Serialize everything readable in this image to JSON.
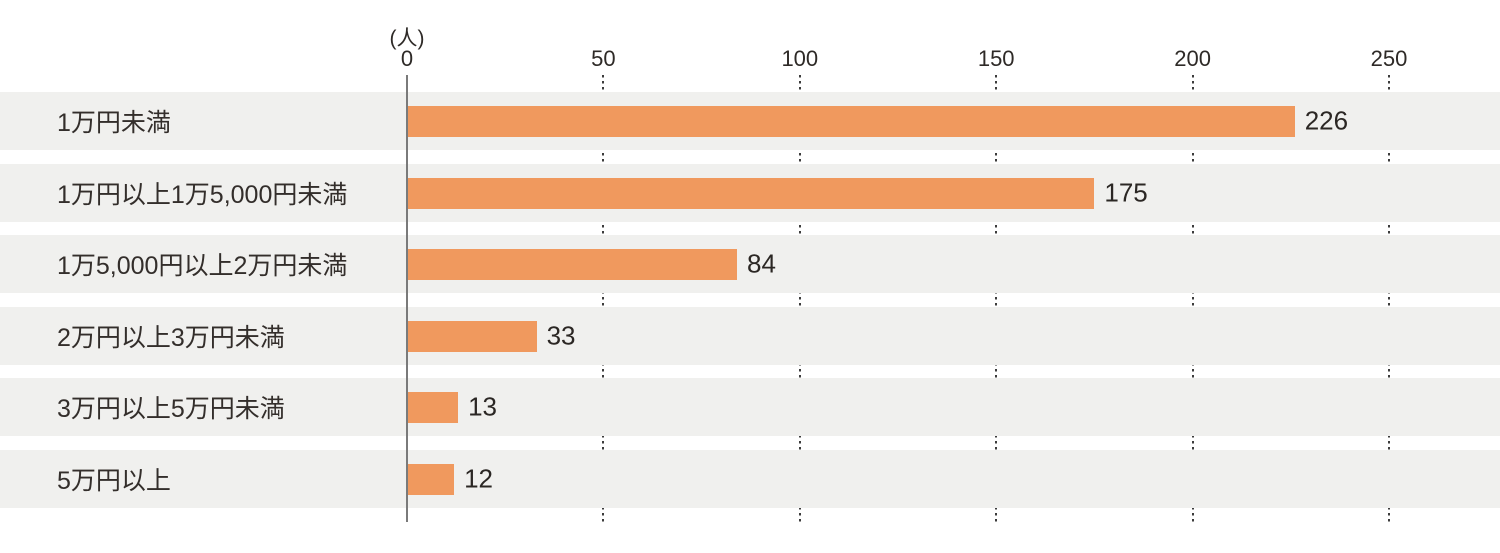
{
  "chart_data": {
    "type": "bar",
    "orientation": "horizontal",
    "title": "",
    "unit_label": "(人)",
    "categories": [
      "1万円未満",
      "1万円以上1万5,000円未満",
      "1万5,000円以上2万円未満",
      "2万円以上3万円未満",
      "3万円以上5万円未満",
      "5万円以上"
    ],
    "values": [
      226,
      175,
      84,
      33,
      13,
      12
    ],
    "value_labels": [
      "226",
      "175",
      "84",
      "33",
      "13",
      "12"
    ],
    "x_ticks": [
      "0",
      "50",
      "100",
      "150",
      "200",
      "250"
    ],
    "x_tick_values": [
      0,
      50,
      100,
      150,
      200,
      250
    ],
    "xlim": [
      0,
      250
    ],
    "legend": "none",
    "grid": "dotted-vertical-at-ticks",
    "colors": {
      "bar": "#f0995e",
      "row_band": "#f0f0ee",
      "axis_line": "#7a7a7a",
      "grid_dots": "#3c3c3c",
      "text": "#2e2a27"
    }
  }
}
